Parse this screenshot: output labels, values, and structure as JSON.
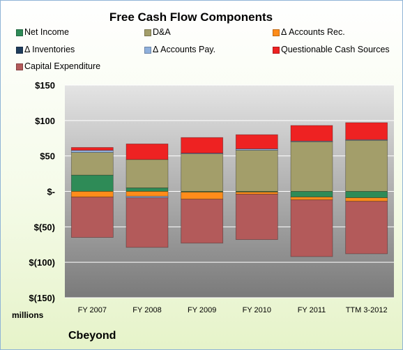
{
  "chart_data": {
    "type": "bar",
    "stacked": true,
    "title": "Free Cash Flow Components",
    "units_label": "millions",
    "company": "Cbeyond",
    "categories": [
      "FY 2007",
      "FY 2008",
      "FY 2009",
      "FY 2010",
      "FY 2011",
      "TTM 3-2012"
    ],
    "ylim": [
      -150,
      150
    ],
    "y_ticks": [
      150,
      100,
      50,
      0,
      -50,
      -100,
      -150
    ],
    "y_tick_labels": [
      "$150",
      "$100",
      "$50",
      "$-",
      "$(50)",
      "$(100)",
      "$(150)"
    ],
    "grid": true,
    "legend_position": "top",
    "series": [
      {
        "name": "Net Income",
        "color": "#2e8b57",
        "values": [
          23,
          5,
          -1,
          -1,
          -8,
          -9
        ]
      },
      {
        "name": "D&A",
        "color": "#a39e6a",
        "values": [
          32,
          40,
          53,
          58,
          70,
          72
        ]
      },
      {
        "name": "Δ Accounts Rec.",
        "color": "#ff8c1a",
        "values": [
          -8,
          -7,
          -10,
          -3,
          -4,
          -5
        ]
      },
      {
        "name": "Δ Inventories",
        "color": "#1f3d5c",
        "values": [
          0,
          0,
          0,
          0,
          0,
          0
        ]
      },
      {
        "name": "Δ Accounts Pay.",
        "color": "#8fb0dc",
        "values": [
          3,
          -2,
          1,
          2,
          1,
          1
        ]
      },
      {
        "name": "Questionable Cash Sources",
        "color": "#ee2222",
        "values": [
          4,
          22,
          22,
          20,
          22,
          24
        ]
      },
      {
        "name": "Capital Expenditure",
        "color": "#b35a5a",
        "values": [
          -57,
          -70,
          -62,
          -64,
          -80,
          -74
        ]
      }
    ]
  }
}
